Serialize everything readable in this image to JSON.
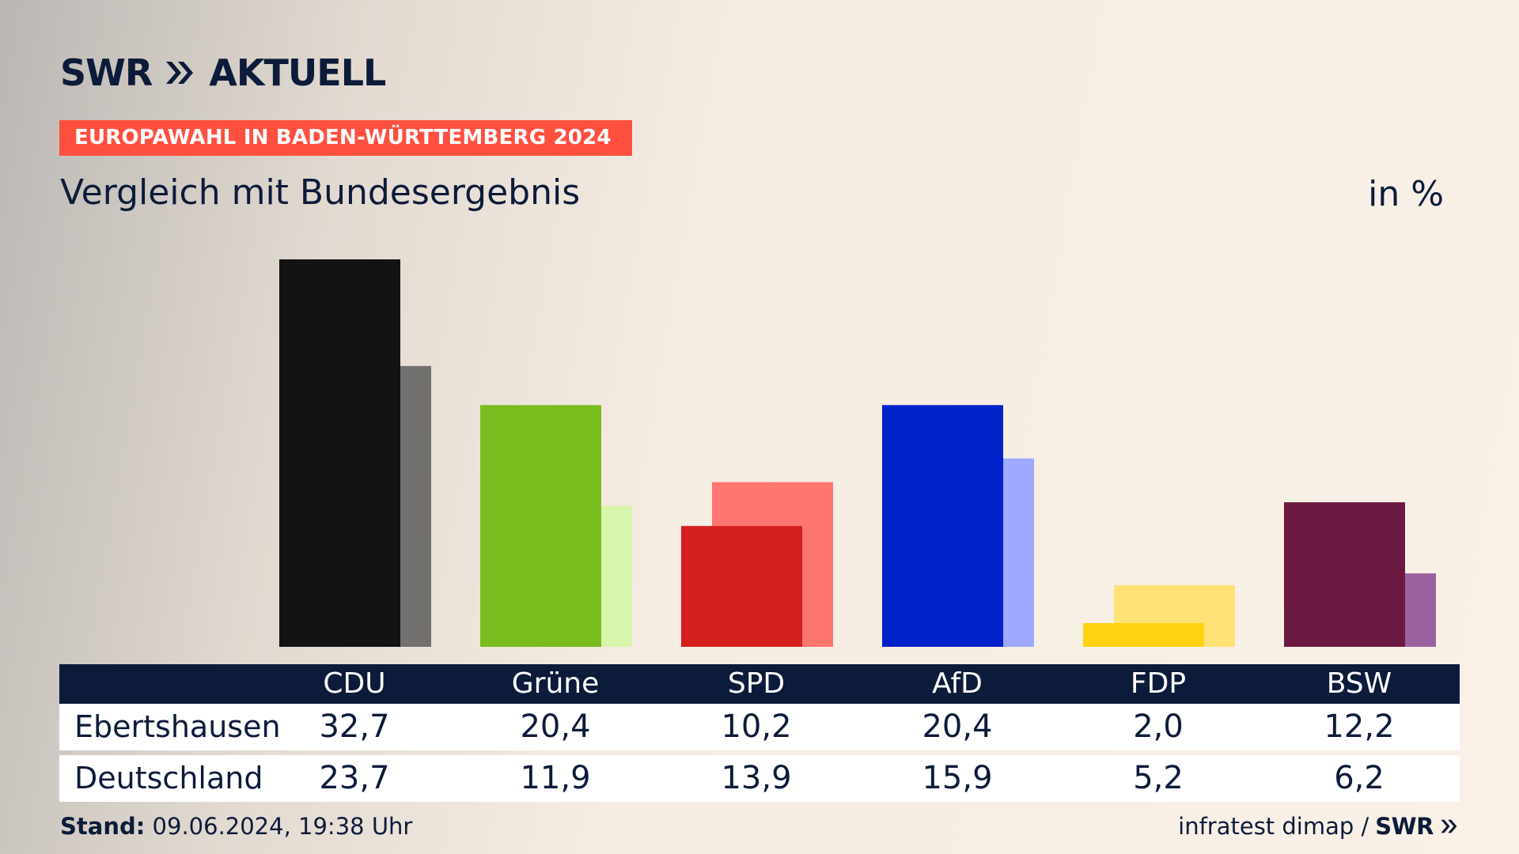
{
  "header": {
    "brand_left": "SWR",
    "brand_right": "AKTUELL",
    "banner": "EUROPAWAHL IN BADEN-WÜRTTEMBERG 2024",
    "subtitle": "Vergleich mit Bundesergebnis",
    "unit": "in %"
  },
  "colors": {
    "background": "#f9f1e7",
    "navy": "#0d1b3a",
    "banner": "#ff4f3f"
  },
  "chart_data": {
    "type": "bar",
    "categories": [
      "CDU",
      "Grüne",
      "SPD",
      "AfD",
      "FDP",
      "BSW"
    ],
    "series": [
      {
        "name": "Ebertshausen",
        "values": [
          32.7,
          20.4,
          10.2,
          20.4,
          2.0,
          12.2
        ],
        "labels": [
          "32,7",
          "20,4",
          "10,2",
          "20,4",
          "2,0",
          "12,2"
        ],
        "colors": [
          "#131313",
          "#78bc1d",
          "#d61f1f",
          "#0020c8",
          "#ffd20f",
          "#6b1940"
        ]
      },
      {
        "name": "Deutschland",
        "values": [
          23.7,
          11.9,
          13.9,
          15.9,
          5.2,
          6.2
        ],
        "labels": [
          "23,7",
          "11,9",
          "13,9",
          "15,9",
          "5,2",
          "6,2"
        ],
        "colors": [
          "#72716f",
          "#d8f5ae",
          "#ff7670",
          "#9ea9ff",
          "#ffe175",
          "#9b62a0"
        ]
      }
    ],
    "ylim": [
      0,
      32.7
    ],
    "grid": false,
    "legend": "table-below"
  },
  "footer": {
    "stand_label": "Stand:",
    "stand_value": " 09.06.2024, 19:38 Uhr",
    "source": "infratest dimap /",
    "source_brand": "SWR"
  }
}
